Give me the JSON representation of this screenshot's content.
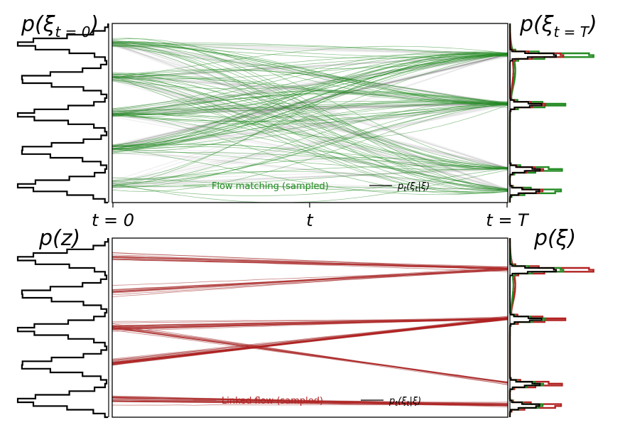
{
  "chart_data": [
    {
      "type": "line",
      "panel": "top",
      "title": "",
      "left_marginal_label": "p(ξ_{t=0})",
      "right_marginal_label": "p(ξ_{t=T})",
      "x_ticks": [
        "t = 0",
        "t",
        "t = T"
      ],
      "legend": [
        {
          "name": "Flow matching (sampled)",
          "color": "#228b22"
        },
        {
          "name": "p_t(ξ_t|ξ)",
          "color": "#000000"
        }
      ],
      "legend_placement": "bottom-center",
      "source_modes": [
        -2.3,
        -1.15,
        0,
        1.15,
        2.3
      ],
      "target_modes": [
        -2.5,
        -1.8,
        0.3,
        1.9
      ],
      "series_color": "#228b22",
      "marginal_colors": {
        "model": "#228b22",
        "reference": "#b22222",
        "analytic": "#000000"
      }
    },
    {
      "type": "line",
      "panel": "bottom",
      "title": "",
      "left_marginal_label": "p(z)",
      "right_marginal_label": "p(ξ)",
      "legend": [
        {
          "name": "Linked flow (sampled)",
          "color": "#b22222"
        },
        {
          "name": "p_t(ξ_t|ξ)",
          "color": "#000000"
        }
      ],
      "legend_placement": "bottom-center",
      "source_modes": [
        -2.3,
        -1.15,
        0,
        1.15,
        2.3
      ],
      "target_modes": [
        -2.5,
        -1.8,
        0.3,
        1.9
      ],
      "series_color": "#b22222",
      "marginal_colors": {
        "model": "#b22222",
        "reference": "#228b22",
        "analytic": "#000000"
      }
    }
  ]
}
